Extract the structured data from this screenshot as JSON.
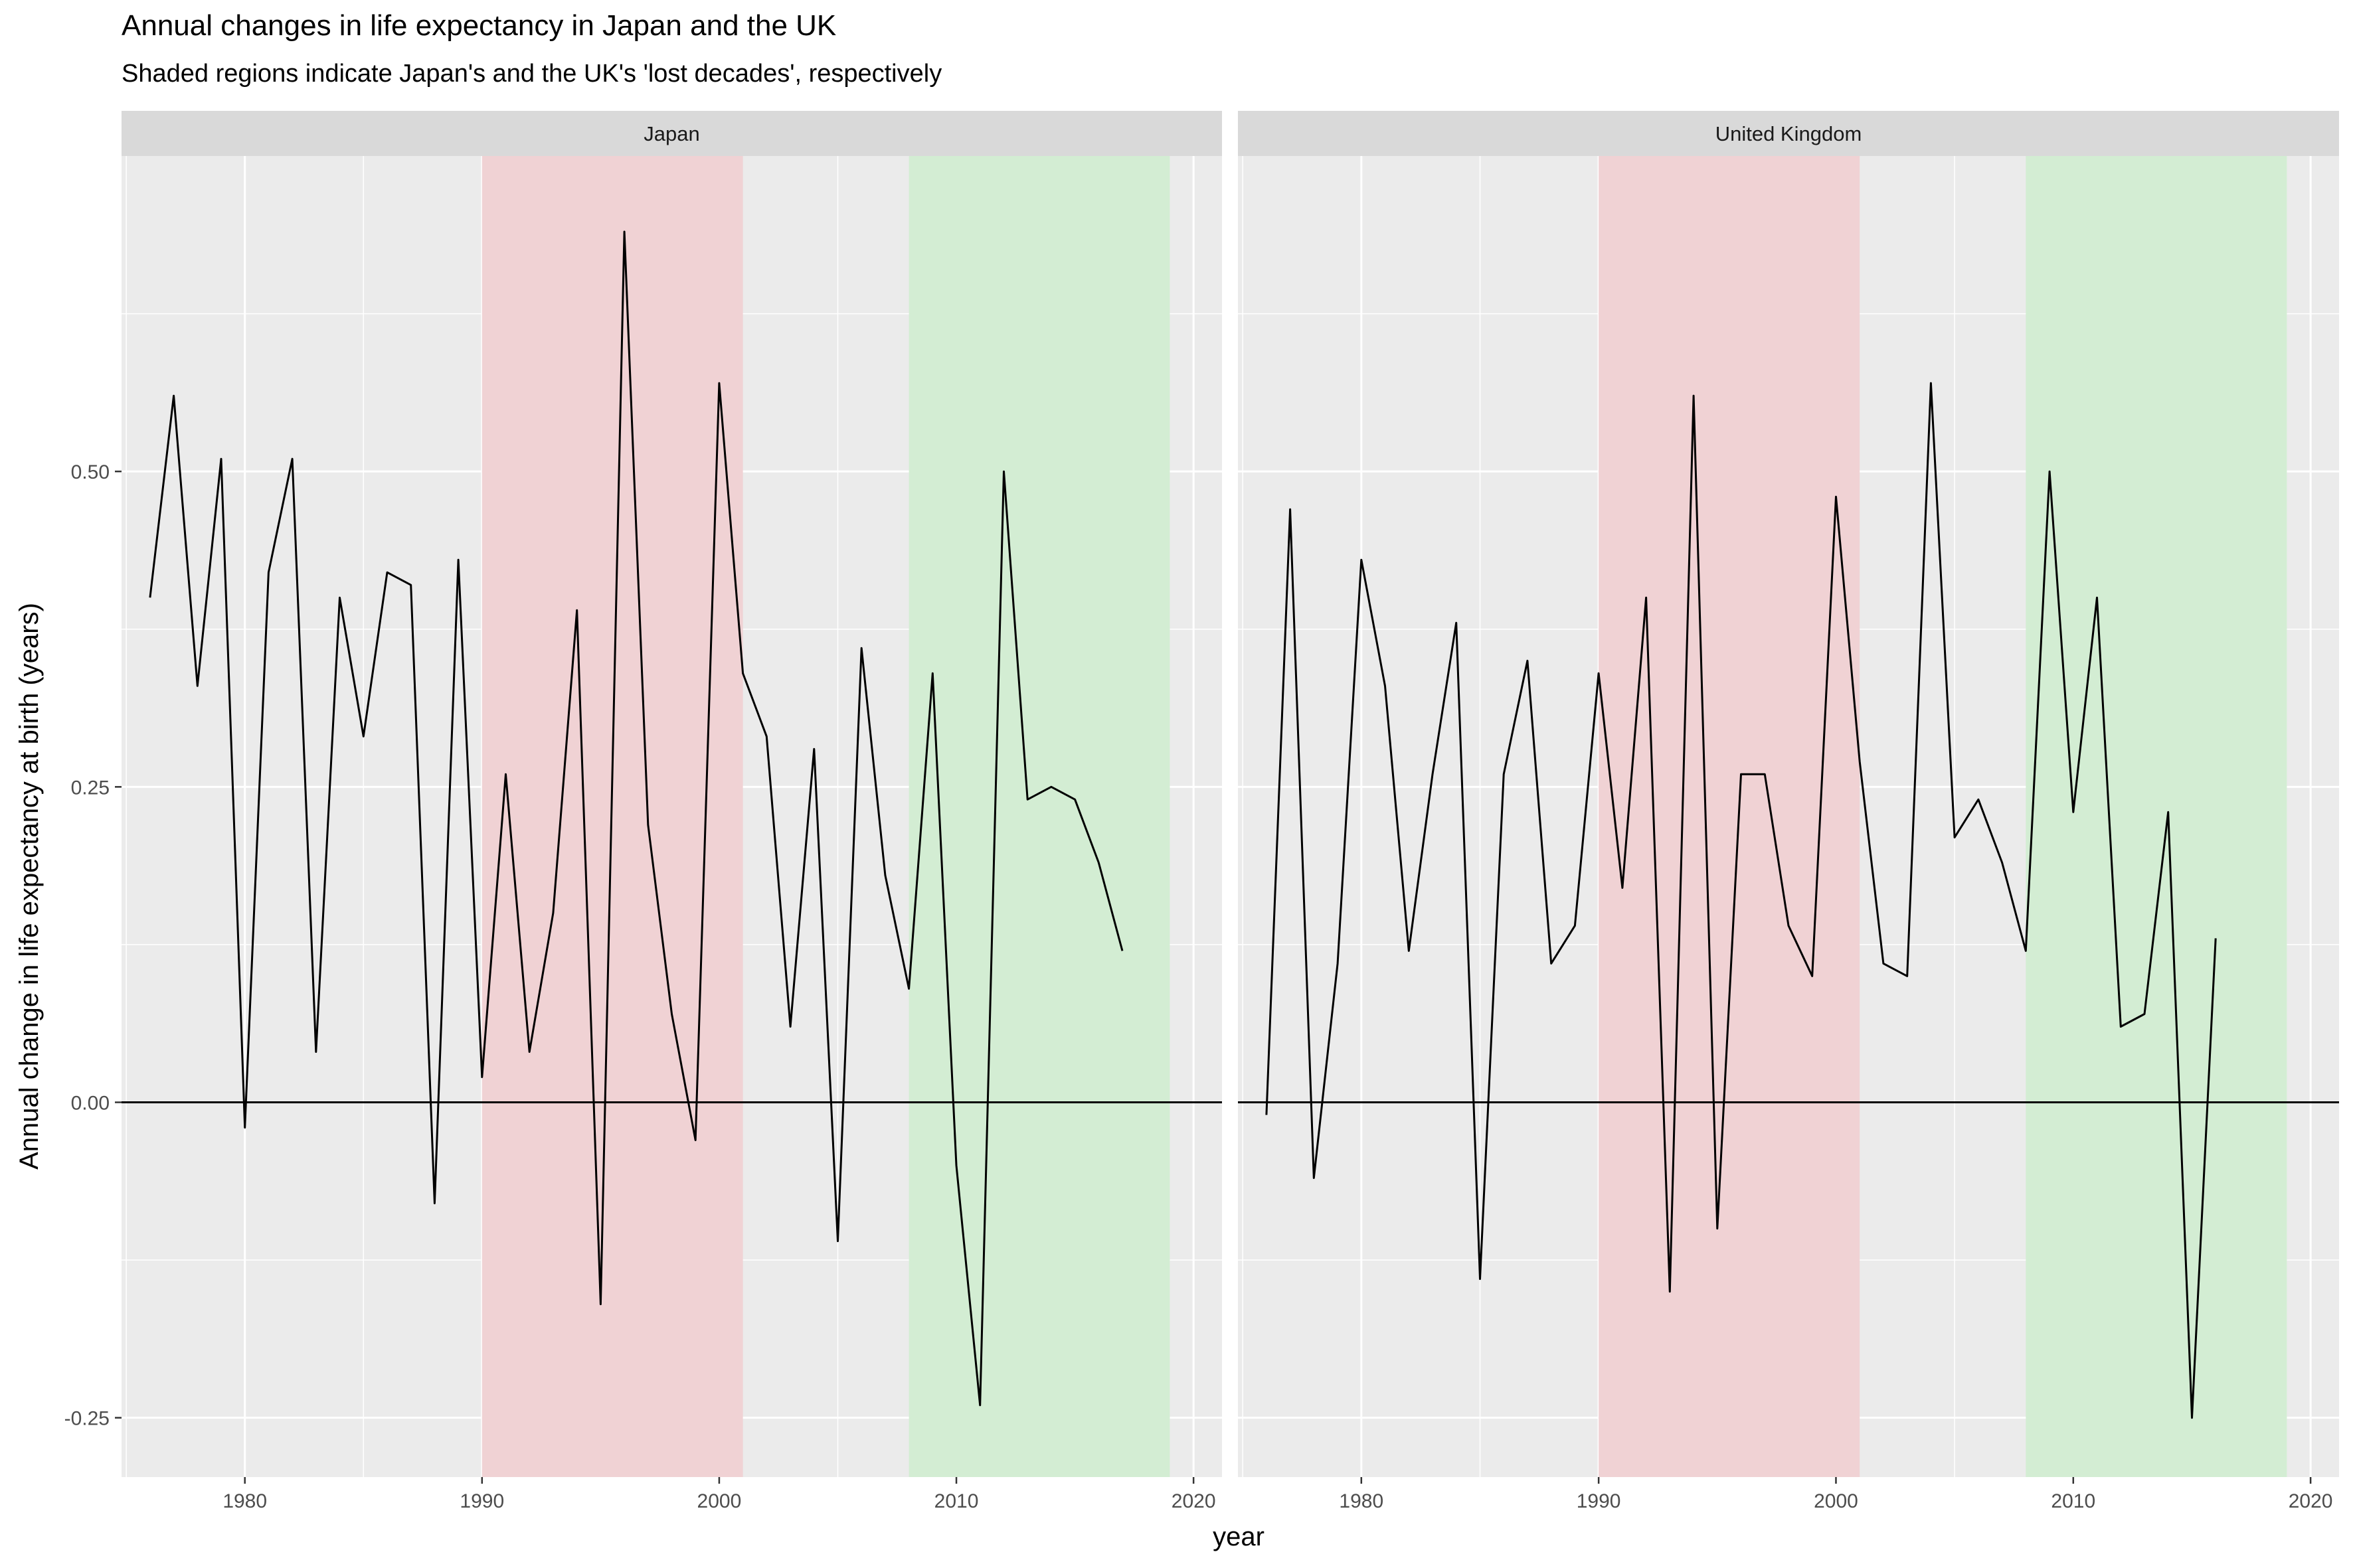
{
  "title": "Annual changes in life expectancy in Japan and the UK",
  "subtitle": "Shaded regions indicate Japan's and the UK's 'lost decades', respectively",
  "colors": {
    "panel_bg": "#ebebeb",
    "strip_bg": "#d9d9d9",
    "grid": "#ffffff",
    "line": "#000000",
    "japan_lost_decade": "#f0d2d4",
    "uk_lost_decade": "#d3edd3"
  },
  "chart_data": {
    "type": "line",
    "xlabel": "year",
    "ylabel": "Annual change in life expectancy at birth (years)",
    "x_ticks": [
      1980,
      1990,
      2000,
      2010,
      2020
    ],
    "y_ticks": [
      -0.25,
      0.0,
      0.25,
      0.5
    ],
    "y_tick_labels": [
      "-0.25",
      "0.00",
      "0.25",
      "0.50"
    ],
    "xlim": [
      1974.8,
      2021.2
    ],
    "ylim": [
      -0.297,
      0.75
    ],
    "reference_line_y": 0,
    "grid": true,
    "facets": [
      {
        "label": "Japan",
        "shaded_regions": [
          {
            "start": 1990,
            "end": 2001,
            "color": "#f0d2d4"
          },
          {
            "start": 2008,
            "end": 2019,
            "color": "#d3edd3"
          }
        ],
        "x": [
          1976,
          1977,
          1978,
          1979,
          1980,
          1981,
          1982,
          1983,
          1984,
          1985,
          1986,
          1987,
          1988,
          1989,
          1990,
          1991,
          1992,
          1993,
          1994,
          1995,
          1996,
          1997,
          1998,
          1999,
          2000,
          2001,
          2002,
          2003,
          2004,
          2005,
          2006,
          2007,
          2008,
          2009,
          2010,
          2011,
          2012,
          2013,
          2014,
          2015,
          2016,
          2017
        ],
        "y": [
          0.4,
          0.56,
          0.33,
          0.51,
          -0.02,
          0.42,
          0.51,
          0.04,
          0.4,
          0.29,
          0.42,
          0.41,
          -0.08,
          0.43,
          0.02,
          0.26,
          0.04,
          0.15,
          0.39,
          -0.16,
          0.69,
          0.22,
          0.07,
          -0.03,
          0.57,
          0.34,
          0.29,
          0.06,
          0.28,
          -0.11,
          0.36,
          0.18,
          0.09,
          0.34,
          -0.05,
          -0.24,
          0.5,
          0.24,
          0.25,
          0.24,
          0.19,
          0.12
        ]
      },
      {
        "label": "United Kingdom",
        "shaded_regions": [
          {
            "start": 1990,
            "end": 2001,
            "color": "#f0d2d4"
          },
          {
            "start": 2008,
            "end": 2019,
            "color": "#d3edd3"
          }
        ],
        "x": [
          1976,
          1977,
          1978,
          1979,
          1980,
          1981,
          1982,
          1983,
          1984,
          1985,
          1986,
          1987,
          1988,
          1989,
          1990,
          1991,
          1992,
          1993,
          1994,
          1995,
          1996,
          1997,
          1998,
          1999,
          2000,
          2001,
          2002,
          2003,
          2004,
          2005,
          2006,
          2007,
          2008,
          2009,
          2010,
          2011,
          2012,
          2013,
          2014,
          2015,
          2016
        ],
        "y": [
          -0.01,
          0.47,
          -0.06,
          0.11,
          0.43,
          0.33,
          0.12,
          0.26,
          0.38,
          -0.14,
          0.26,
          0.35,
          0.11,
          0.14,
          0.34,
          0.17,
          0.4,
          -0.15,
          0.56,
          -0.1,
          0.26,
          0.26,
          0.14,
          0.1,
          0.48,
          0.27,
          0.11,
          0.1,
          0.57,
          0.21,
          0.24,
          0.19,
          0.12,
          0.5,
          0.23,
          0.4,
          0.06,
          0.07,
          0.23,
          -0.25,
          0.13
        ]
      }
    ]
  }
}
